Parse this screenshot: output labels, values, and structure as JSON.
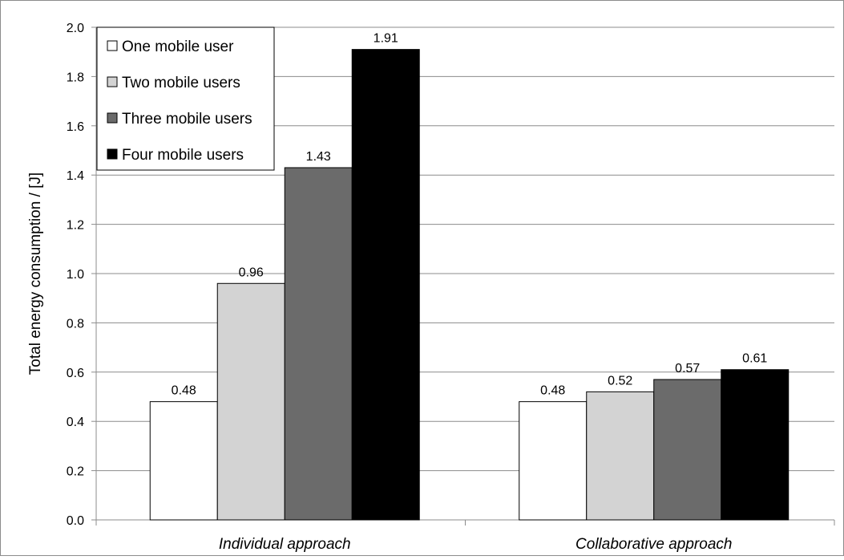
{
  "chart_data": {
    "type": "bar",
    "categories": [
      "Individual approach",
      "Collaborative approach"
    ],
    "series": [
      {
        "name": "One mobile user",
        "color": "#ffffff",
        "values": [
          0.48,
          0.48
        ]
      },
      {
        "name": "Two mobile users",
        "color": "#d3d3d3",
        "values": [
          0.96,
          0.52
        ]
      },
      {
        "name": "Three mobile users",
        "color": "#6b6b6b",
        "values": [
          1.43,
          0.57
        ]
      },
      {
        "name": "Four mobile users",
        "color": "#000000",
        "values": [
          1.91,
          0.61
        ]
      }
    ],
    "data_labels": [
      [
        "0.48",
        "0.48"
      ],
      [
        "0.96",
        "0.52"
      ],
      [
        "1.43",
        "0.57"
      ],
      [
        "1.91",
        "0.61"
      ]
    ],
    "ylabel": "Total energy consumption / [J]",
    "xlabel": "",
    "ylim": [
      0,
      2.0
    ],
    "yticks": [
      "0.0",
      "0.2",
      "0.4",
      "0.6",
      "0.8",
      "1.0",
      "1.2",
      "1.4",
      "1.6",
      "1.8",
      "2.0"
    ],
    "grid": true,
    "legend_position": "top-left"
  }
}
